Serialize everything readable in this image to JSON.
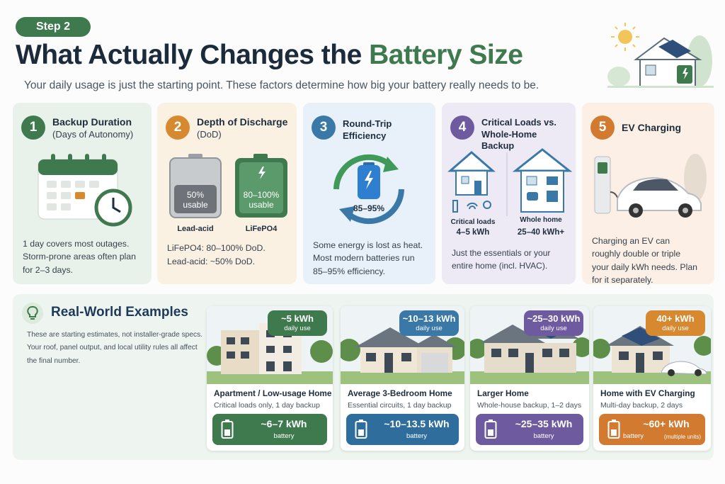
{
  "header": {
    "step": "Step 2",
    "title": "What Actually Changes the",
    "title_highlight": "Battery Size",
    "subtitle": "Your daily usage is just the starting point. These factors determine how big your battery really needs to be."
  },
  "factors": [
    {
      "number": 1,
      "title": "Backup Duration",
      "subtitle": "(Days of Autonomy)",
      "body": "1 day covers most outages. Storm-prone areas often plan for 2–3 days."
    },
    {
      "number": 2,
      "title": "Depth of Discharge",
      "subtitle": "(DoD)",
      "batteries": [
        {
          "percent": "50%",
          "label": "usable",
          "name": "Lead-acid"
        },
        {
          "percent": "80–100%",
          "label": "usable",
          "name": "LiFePO4"
        }
      ],
      "body": [
        "LiFePO4: 80–100% DoD.",
        "Lead-acid: ~50% DoD."
      ]
    },
    {
      "number": 3,
      "title": "Round-Trip Efficiency",
      "gauge": "85–95%",
      "body": "Some energy is lost as heat. Most modern batteries run 85–95% efficiency."
    },
    {
      "number": 4,
      "title": "Critical Loads vs. Whole-Home Backup",
      "options": [
        {
          "name": "Critical loads",
          "value": "4–5 kWh"
        },
        {
          "name": "Whole home",
          "value": "25–40 kWh+"
        }
      ],
      "body": "Just the essentials or your entire home (incl. HVAC)."
    },
    {
      "number": 5,
      "title": "EV Charging",
      "body": "Charging an EV can roughly double or triple your daily kWh needs. Plan for it separately."
    }
  ],
  "examples": {
    "title": "Real-World Examples",
    "notes": [
      "These are starting estimates, not installer-grade specs.",
      "Your roof, panel output, and local utility rules all affect the final number."
    ],
    "cards": [
      {
        "usage": "~5 kWh",
        "usage_label": "daily use",
        "name": "Apartment / Low-usage Home",
        "details": "Critical loads only, 1 day backup",
        "battery": "~6–7 kWh",
        "battery_label": "battery"
      },
      {
        "usage": "~10–13 kWh",
        "usage_label": "daily use",
        "name": "Average 3-Bedroom Home",
        "details": "Essential circuits, 1 day backup",
        "battery": "~10–13.5 kWh",
        "battery_label": "battery"
      },
      {
        "usage": "~25–30 kWh",
        "usage_label": "daily use",
        "name": "Larger Home",
        "details": "Whole-house backup, 1–2 days",
        "battery": "~25–35 kWh",
        "battery_label": "battery"
      },
      {
        "usage": "40+ kWh",
        "usage_label": "daily use",
        "name": "Home with EV Charging",
        "details": "Multi-day backup, 2 days",
        "battery": "~60+ kWh",
        "battery_label": "battery",
        "battery_note": "(multiple units)"
      }
    ]
  }
}
